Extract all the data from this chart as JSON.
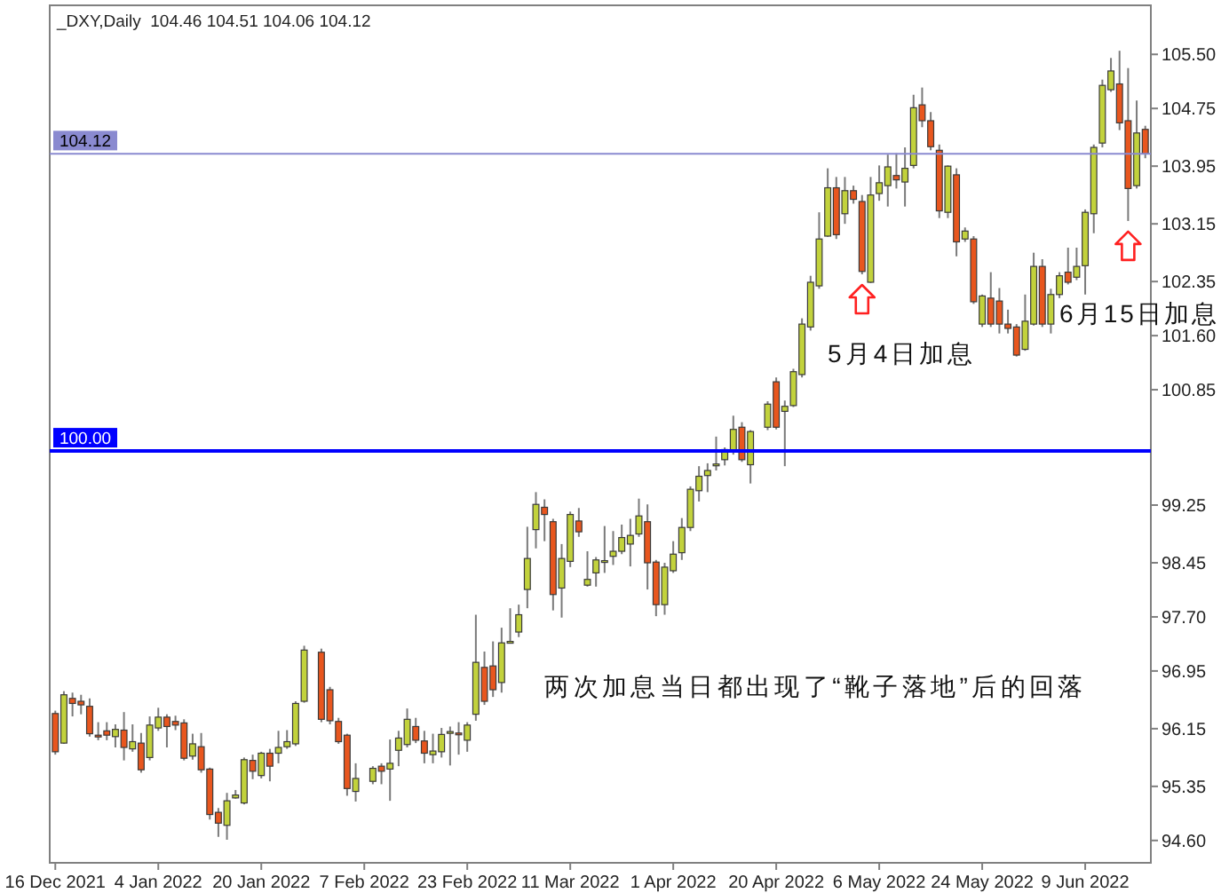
{
  "chart_data": {
    "type": "candlestick",
    "title": "_DXY,Daily  104.46 104.51 104.06 104.12",
    "categories": [
      "16 Dec 2021",
      null,
      null,
      null,
      null,
      null,
      null,
      null,
      null,
      null,
      null,
      null,
      "4 Jan 2022",
      null,
      null,
      null,
      null,
      null,
      null,
      null,
      null,
      null,
      null,
      null,
      "20 Jan 2022",
      null,
      null,
      null,
      null,
      null,
      null,
      null,
      null,
      null,
      null,
      null,
      "7 Feb 2022",
      null,
      null,
      null,
      null,
      null,
      null,
      null,
      null,
      null,
      null,
      null,
      "23 Feb 2022",
      null,
      null,
      null,
      null,
      null,
      null,
      null,
      null,
      null,
      null,
      null,
      "11 Mar 2022",
      null,
      null,
      null,
      null,
      null,
      null,
      null,
      null,
      null,
      null,
      null,
      "1 Apr 2022",
      null,
      null,
      null,
      null,
      null,
      null,
      null,
      null,
      null,
      null,
      null,
      "20 Apr 2022",
      null,
      null,
      null,
      null,
      null,
      null,
      null,
      null,
      null,
      null,
      null,
      "6 May 2022",
      null,
      null,
      null,
      null,
      null,
      null,
      null,
      null,
      null,
      null,
      null,
      "24 May 2022",
      null,
      null,
      null,
      null,
      null,
      null,
      null,
      null,
      null,
      null,
      null,
      "9 Jun 2022",
      null,
      null,
      null,
      null,
      null,
      null,
      null
    ],
    "ohlc": [
      [
        96.36,
        96.4,
        95.79,
        95.83
      ],
      [
        95.95,
        96.67,
        95.94,
        96.62
      ],
      [
        96.57,
        96.65,
        96.32,
        96.5
      ],
      [
        96.53,
        96.62,
        96.35,
        96.48
      ],
      [
        96.46,
        96.57,
        96.04,
        96.08
      ],
      [
        96.06,
        96.24,
        95.99,
        96.04
      ],
      [
        96.12,
        96.24,
        95.99,
        96.06
      ],
      [
        96.04,
        96.21,
        95.89,
        96.14
      ],
      [
        96.13,
        96.38,
        95.71,
        95.89
      ],
      [
        95.87,
        96.21,
        95.83,
        95.97
      ],
      [
        95.95,
        96.09,
        95.54,
        95.58
      ],
      [
        95.75,
        96.32,
        95.71,
        96.2
      ],
      [
        96.16,
        96.44,
        96.12,
        96.31
      ],
      [
        96.31,
        96.35,
        95.89,
        96.18
      ],
      [
        96.25,
        96.33,
        96.13,
        96.2
      ],
      [
        96.23,
        96.28,
        95.71,
        95.74
      ],
      [
        95.77,
        96.08,
        95.72,
        95.94
      ],
      [
        95.9,
        96.09,
        95.54,
        95.58
      ],
      [
        95.59,
        95.61,
        94.89,
        94.96
      ],
      [
        94.99,
        95.05,
        94.65,
        94.84
      ],
      [
        94.81,
        95.26,
        94.61,
        95.15
      ],
      [
        95.19,
        95.3,
        95.18,
        95.23
      ],
      [
        95.12,
        95.75,
        95.1,
        95.72
      ],
      [
        95.71,
        95.79,
        95.45,
        95.56
      ],
      [
        95.5,
        95.83,
        95.46,
        95.81
      ],
      [
        95.81,
        95.87,
        95.42,
        95.63
      ],
      [
        95.81,
        96.12,
        95.67,
        95.89
      ],
      [
        95.9,
        96.13,
        95.87,
        95.97
      ],
      [
        95.94,
        96.53,
        95.91,
        96.5
      ],
      [
        96.53,
        97.3,
        96.51,
        97.24
      ],
      null,
      [
        97.21,
        97.26,
        96.24,
        96.28
      ],
      [
        96.69,
        96.73,
        96.21,
        96.26
      ],
      [
        96.25,
        96.3,
        95.94,
        95.97
      ],
      [
        96.06,
        96.08,
        95.22,
        95.32
      ],
      [
        95.28,
        95.67,
        95.14,
        95.46
      ],
      null,
      [
        95.42,
        95.63,
        95.38,
        95.6
      ],
      [
        95.63,
        95.67,
        95.38,
        95.56
      ],
      [
        95.59,
        96.0,
        95.15,
        95.67
      ],
      [
        95.85,
        96.12,
        95.63,
        96.02
      ],
      [
        95.93,
        96.43,
        95.89,
        96.28
      ],
      [
        96.18,
        96.3,
        95.95,
        95.99
      ],
      [
        95.98,
        96.12,
        95.67,
        95.81
      ],
      [
        95.79,
        96.08,
        95.67,
        95.84
      ],
      [
        95.83,
        96.16,
        95.75,
        96.07
      ],
      [
        96.09,
        96.18,
        95.64,
        96.11
      ],
      [
        96.09,
        96.24,
        95.79,
        96.07
      ],
      [
        95.99,
        96.24,
        95.83,
        96.2
      ],
      [
        96.35,
        97.73,
        96.26,
        97.07
      ],
      [
        97.0,
        97.22,
        96.48,
        96.53
      ],
      [
        97.02,
        97.36,
        96.59,
        96.69
      ],
      [
        96.79,
        97.55,
        96.65,
        97.34
      ],
      [
        97.34,
        97.82,
        97.33,
        97.36
      ],
      [
        97.49,
        97.87,
        97.42,
        97.73
      ],
      [
        98.08,
        98.95,
        97.82,
        98.51
      ],
      [
        98.91,
        99.43,
        98.65,
        99.26
      ],
      [
        99.22,
        99.33,
        98.75,
        99.12
      ],
      [
        99.02,
        99.06,
        97.79,
        98.01
      ],
      [
        98.1,
        98.71,
        97.69,
        98.51
      ],
      [
        98.47,
        99.16,
        98.39,
        99.12
      ],
      [
        99.03,
        99.21,
        98.81,
        98.88
      ],
      [
        98.14,
        98.61,
        98.12,
        98.22
      ],
      [
        98.31,
        98.53,
        98.12,
        98.49
      ],
      [
        98.46,
        98.96,
        98.31,
        98.48
      ],
      [
        98.54,
        98.89,
        98.42,
        98.61
      ],
      [
        98.61,
        98.98,
        98.57,
        98.8
      ],
      [
        98.71,
        99.06,
        98.4,
        98.83
      ],
      [
        98.85,
        99.34,
        98.81,
        99.1
      ],
      [
        99.02,
        99.26,
        98.08,
        98.45
      ],
      [
        98.46,
        98.49,
        97.71,
        97.87
      ],
      [
        97.87,
        98.45,
        97.73,
        98.39
      ],
      [
        98.34,
        98.75,
        98.31,
        98.57
      ],
      [
        98.59,
        99.07,
        98.49,
        98.94
      ],
      [
        98.94,
        99.51,
        98.89,
        99.47
      ],
      [
        99.45,
        99.79,
        99.3,
        99.65
      ],
      [
        99.66,
        99.83,
        99.43,
        99.73
      ],
      [
        99.8,
        100.2,
        99.73,
        99.82
      ],
      [
        99.88,
        100.05,
        99.8,
        100.02
      ],
      [
        100.0,
        100.49,
        99.95,
        100.3
      ],
      [
        100.33,
        100.4,
        99.85,
        99.88
      ],
      [
        99.81,
        100.29,
        99.55,
        100.27
      ],
      null,
      [
        100.33,
        100.69,
        100.29,
        100.65
      ],
      [
        100.96,
        101.02,
        100.3,
        100.33
      ],
      [
        100.55,
        100.7,
        99.79,
        100.62
      ],
      [
        100.63,
        101.14,
        100.61,
        101.1
      ],
      [
        101.06,
        101.84,
        101.02,
        101.76
      ],
      [
        101.72,
        102.43,
        101.67,
        102.34
      ],
      [
        102.29,
        103.31,
        102.25,
        102.94
      ],
      [
        102.98,
        103.92,
        102.97,
        103.65
      ],
      [
        103.65,
        103.8,
        102.94,
        103.0
      ],
      [
        103.29,
        103.8,
        103.15,
        103.61
      ],
      [
        103.61,
        103.68,
        103.43,
        103.49
      ],
      [
        103.46,
        103.55,
        102.45,
        102.49
      ],
      [
        102.34,
        103.8,
        102.33,
        103.55
      ],
      [
        103.57,
        103.96,
        103.47,
        103.72
      ],
      [
        103.68,
        104.11,
        103.39,
        103.94
      ],
      [
        103.82,
        104.13,
        103.64,
        103.76
      ],
      [
        103.73,
        104.21,
        103.39,
        103.92
      ],
      [
        103.96,
        104.94,
        103.92,
        104.76
      ],
      [
        104.8,
        105.04,
        104.49,
        104.58
      ],
      [
        104.58,
        104.7,
        104.17,
        104.22
      ],
      [
        104.17,
        104.25,
        103.23,
        103.33
      ],
      [
        103.31,
        103.96,
        103.23,
        103.95
      ],
      [
        103.83,
        103.92,
        102.7,
        102.9
      ],
      [
        102.94,
        103.1,
        102.9,
        103.05
      ],
      [
        102.94,
        102.98,
        102.04,
        102.07
      ],
      [
        101.76,
        102.17,
        101.72,
        102.15
      ],
      [
        102.12,
        102.48,
        101.72,
        101.76
      ],
      [
        102.08,
        102.26,
        101.63,
        101.76
      ],
      [
        101.76,
        101.96,
        101.63,
        101.7
      ],
      [
        101.72,
        101.76,
        101.31,
        101.33
      ],
      [
        101.41,
        102.17,
        101.39,
        101.8
      ],
      [
        101.76,
        102.75,
        101.74,
        102.56
      ],
      [
        102.56,
        102.66,
        101.72,
        101.76
      ],
      [
        101.76,
        102.25,
        101.63,
        102.17
      ],
      [
        102.17,
        102.48,
        102.12,
        102.43
      ],
      [
        102.48,
        102.82,
        102.31,
        102.34
      ],
      [
        102.41,
        102.82,
        102.37,
        102.56
      ],
      [
        102.57,
        103.35,
        102.17,
        103.31
      ],
      [
        103.29,
        104.25,
        103.02,
        104.21
      ],
      [
        104.27,
        105.15,
        104.21,
        105.07
      ],
      [
        105.01,
        105.45,
        104.98,
        105.27
      ],
      [
        105.09,
        105.55,
        104.45,
        104.55
      ],
      [
        104.58,
        105.31,
        103.19,
        103.64
      ],
      [
        103.68,
        104.86,
        103.64,
        104.41
      ],
      [
        104.46,
        104.51,
        104.06,
        104.12
      ]
    ],
    "ylim": [
      94.29,
      106.18
    ],
    "yticks": [
      {
        "value": 105.5,
        "label": "105.50"
      },
      {
        "value": 104.75,
        "label": "104.75"
      },
      {
        "value": 103.95,
        "label": "103.95"
      },
      {
        "value": 103.15,
        "label": "103.15"
      },
      {
        "value": 102.35,
        "label": "102.35"
      },
      {
        "value": 101.6,
        "label": "101.60"
      },
      {
        "value": 100.85,
        "label": "100.85"
      },
      {
        "value": 99.25,
        "label": "99.25"
      },
      {
        "value": 98.45,
        "label": "98.45"
      },
      {
        "value": 97.7,
        "label": "97.70"
      },
      {
        "value": 96.95,
        "label": "96.95"
      },
      {
        "value": 96.15,
        "label": "96.15"
      },
      {
        "value": 95.35,
        "label": "95.35"
      },
      {
        "value": 94.6,
        "label": "94.60"
      }
    ],
    "ref_lines": [
      {
        "axis": "y",
        "value": 104.12,
        "label": "104.12",
        "color": "#8a8ad0"
      },
      {
        "axis": "y",
        "value": 100,
        "label": "100.00",
        "color": "#0000ff"
      }
    ],
    "annotations": [
      "5月4日加息",
      "6月15日加息",
      "两次加息当日都出现了“靴子落地”后的回落"
    ]
  }
}
